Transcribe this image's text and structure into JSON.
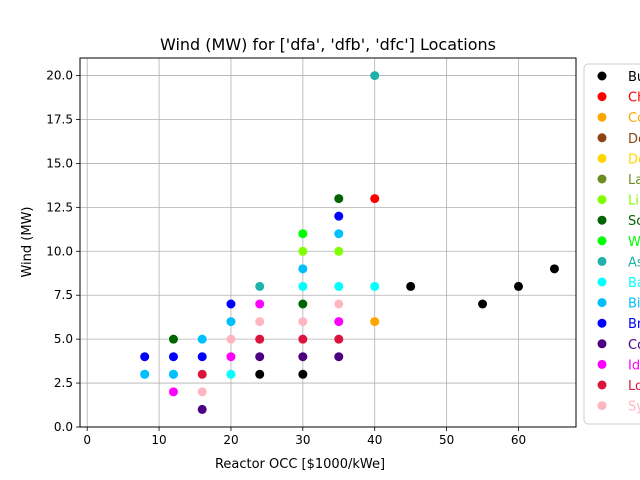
{
  "chart_data": {
    "type": "scatter",
    "title": "Wind (MW) for ['dfa', 'dfb', 'dfc'] Locations",
    "xlabel": "Reactor OCC [$1000/kWe]",
    "ylabel": "Wind (MW)",
    "xlim": [
      -1,
      68
    ],
    "ylim": [
      0,
      21
    ],
    "x_ticks": [
      0,
      10,
      20,
      30,
      40,
      50,
      60
    ],
    "x_tick_labels": [
      "0",
      "10",
      "20",
      "30",
      "40",
      "50",
      "60"
    ],
    "y_ticks": [
      0,
      2.5,
      5,
      7.5,
      10,
      12.5,
      15,
      17.5,
      20
    ],
    "y_tick_labels": [
      "0.0",
      "2.5",
      "5.0",
      "7.5",
      "10.0",
      "12.5",
      "15.0",
      "17.5",
      "20.0"
    ],
    "grid": true,
    "legend_position": "right, outside plot (clipped)",
    "series": [
      {
        "name": "Bu",
        "color": "#000000",
        "points": [
          [
            24,
            3
          ],
          [
            30,
            3
          ],
          [
            45,
            8
          ],
          [
            55,
            7
          ],
          [
            60,
            8
          ],
          [
            65,
            9
          ]
        ]
      },
      {
        "name": "Ch",
        "color": "#ff0000",
        "points": [
          [
            40,
            13
          ]
        ]
      },
      {
        "name": "Co",
        "color": "#ffa500",
        "points": [
          [
            40,
            6
          ]
        ]
      },
      {
        "name": "De",
        "color": "#8b4513",
        "points": []
      },
      {
        "name": "De",
        "color": "#ffd700",
        "points": []
      },
      {
        "name": "La",
        "color": "#6b8e23",
        "points": []
      },
      {
        "name": "Li",
        "color": "#7fff00",
        "points": [
          [
            30,
            10
          ],
          [
            35,
            10
          ]
        ]
      },
      {
        "name": "So",
        "color": "#006400",
        "points": [
          [
            12,
            5
          ],
          [
            30,
            7
          ],
          [
            35,
            13
          ]
        ]
      },
      {
        "name": "W",
        "color": "#00ff00",
        "points": [
          [
            30,
            11
          ]
        ]
      },
      {
        "name": "As",
        "color": "#20b2aa",
        "points": [
          [
            24,
            8
          ],
          [
            40,
            20
          ]
        ]
      },
      {
        "name": "Ba",
        "color": "#00ffff",
        "points": [
          [
            8,
            3
          ],
          [
            12,
            3
          ],
          [
            20,
            3
          ],
          [
            30,
            8
          ],
          [
            35,
            8
          ],
          [
            40,
            8
          ]
        ]
      },
      {
        "name": "Bi",
        "color": "#00bfff",
        "points": [
          [
            8,
            3
          ],
          [
            12,
            3
          ],
          [
            16,
            5
          ],
          [
            20,
            6
          ],
          [
            30,
            9
          ],
          [
            35,
            11
          ]
        ]
      },
      {
        "name": "Br",
        "color": "#0000ff",
        "points": [
          [
            8,
            4
          ],
          [
            12,
            4
          ],
          [
            16,
            4
          ],
          [
            20,
            7
          ],
          [
            35,
            12
          ]
        ]
      },
      {
        "name": "Co",
        "color": "#4b0082",
        "points": [
          [
            16,
            1
          ],
          [
            24,
            4
          ],
          [
            30,
            4
          ],
          [
            35,
            4
          ]
        ]
      },
      {
        "name": "Id",
        "color": "#ff00ff",
        "points": [
          [
            12,
            2
          ],
          [
            20,
            4
          ],
          [
            24,
            7
          ],
          [
            35,
            6
          ]
        ]
      },
      {
        "name": "Lo",
        "color": "#dc143c",
        "points": [
          [
            16,
            3
          ],
          [
            24,
            5
          ],
          [
            30,
            5
          ],
          [
            35,
            5
          ]
        ]
      },
      {
        "name": "Sy",
        "color": "#ffb6c1",
        "points": [
          [
            16,
            2
          ],
          [
            20,
            5
          ],
          [
            24,
            6
          ],
          [
            30,
            6
          ],
          [
            35,
            7
          ]
        ]
      }
    ]
  }
}
